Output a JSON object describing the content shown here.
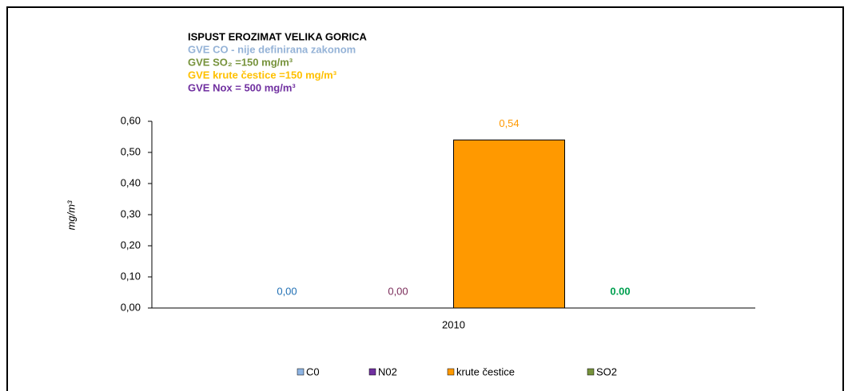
{
  "chart_data": {
    "type": "bar",
    "annotations": [
      {
        "text": "ISPUST EROZIMAT VELIKA GORICA",
        "color": "#000000"
      },
      {
        "text": "GVE CO - nije definirana zakonom",
        "color": "#95b3d7"
      },
      {
        "text": "GVE SO₂ =150 mg/m³",
        "color": "#77933c"
      },
      {
        "text": "GVE krute čestice =150 mg/m³",
        "color": "#ffc000"
      },
      {
        "text": "GVE Nox = 500 mg/m³",
        "color": "#7030a0"
      }
    ],
    "y_label": "mg/m³",
    "categories": [
      "2010"
    ],
    "series": [
      {
        "name": "C0",
        "color": "#8eb4e3",
        "label_color": "#1f6fb4",
        "values": [
          0
        ],
        "value_labels": [
          "0,00"
        ]
      },
      {
        "name": "N02",
        "color": "#7030a0",
        "label_color": "#7b2c5a",
        "values": [
          0
        ],
        "value_labels": [
          "0,00"
        ]
      },
      {
        "name": "krute čestice",
        "color": "#ff9900",
        "label_color": "#ff9900",
        "values": [
          0.54
        ],
        "value_labels": [
          "0,54"
        ]
      },
      {
        "name": "SO2",
        "color": "#77933c",
        "label_color": "#00a050",
        "values": [
          0
        ],
        "value_labels": [
          "0.00"
        ]
      }
    ],
    "ylim": [
      0,
      0.6
    ],
    "yticks": [
      {
        "value": 0,
        "label": "0,00"
      },
      {
        "value": 0.1,
        "label": "0,10"
      },
      {
        "value": 0.2,
        "label": "0,20"
      },
      {
        "value": 0.3,
        "label": "0,30"
      },
      {
        "value": 0.4,
        "label": "0,40"
      },
      {
        "value": 0.5,
        "label": "0,50"
      },
      {
        "value": 0.6,
        "label": "0,60"
      }
    ]
  }
}
